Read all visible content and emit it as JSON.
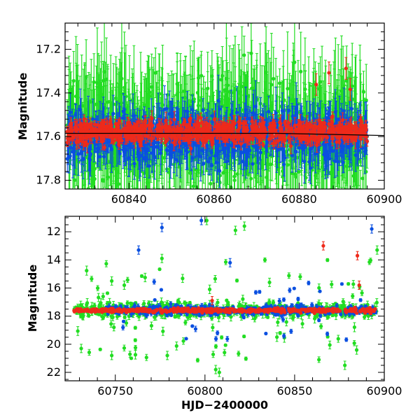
{
  "chart_data": [
    {
      "type": "scatter",
      "title": "",
      "xlabel": "",
      "ylabel": "Magnitude",
      "xlim": [
        60825,
        60900
      ],
      "ylim": [
        17.84,
        17.08
      ],
      "y_inverted": true,
      "xticks": [
        60840,
        60860,
        60880,
        60900
      ],
      "yticks": [
        17.2,
        17.4,
        17.6,
        17.8
      ],
      "xtick_labels": [
        "60840",
        "60860",
        "60880",
        "60900"
      ],
      "ytick_labels": [
        "17.2",
        "17.4",
        "17.6",
        "17.8"
      ],
      "grid": false,
      "error_bars": true,
      "series": [
        {
          "color": "#22dd22",
          "marker": "circle"
        },
        {
          "color": "#0a4fe0",
          "marker": "circle"
        },
        {
          "color": "#ee2a1b",
          "marker": "circle"
        }
      ],
      "model_curve": {
        "color": "#000000",
        "x": [
          60825,
          60850,
          60875,
          60900
        ],
        "y": [
          17.585,
          17.585,
          17.585,
          17.595
        ]
      }
    },
    {
      "type": "scatter",
      "title": "",
      "xlabel": "HJD−2400000",
      "ylabel": "Magnitude",
      "xlim": [
        60722,
        60900
      ],
      "ylim": [
        22.6,
        10.9
      ],
      "y_inverted": true,
      "xticks": [
        60750,
        60800,
        60850,
        60900
      ],
      "yticks": [
        12,
        14,
        16,
        18,
        20,
        22
      ],
      "xtick_labels": [
        "60750",
        "60800",
        "60850",
        "60900"
      ],
      "ytick_labels": [
        "12",
        "14",
        "16",
        "18",
        "20",
        "22"
      ],
      "grid": false,
      "error_bars": true,
      "series": [
        {
          "color": "#22dd22",
          "marker": "circle"
        },
        {
          "color": "#0a4fe0",
          "marker": "circle"
        },
        {
          "color": "#ee2a1b",
          "marker": "circle"
        }
      ],
      "highlight_points": [
        {
          "series": 1,
          "x": 60763,
          "y": 13.3
        },
        {
          "series": 1,
          "x": 60776,
          "y": 11.7
        },
        {
          "series": 1,
          "x": 60798,
          "y": 11.2
        },
        {
          "series": 1,
          "x": 60814,
          "y": 14.2
        },
        {
          "series": 1,
          "x": 60893,
          "y": 11.8
        },
        {
          "series": 0,
          "x": 60776,
          "y": 13.9
        },
        {
          "series": 0,
          "x": 60801,
          "y": 11.2
        },
        {
          "series": 0,
          "x": 60822,
          "y": 11.6
        },
        {
          "series": 0,
          "x": 60817,
          "y": 11.9
        },
        {
          "series": 0,
          "x": 60748,
          "y": 15.5
        },
        {
          "series": 0,
          "x": 60755,
          "y": 15.8
        },
        {
          "series": 0,
          "x": 60731,
          "y": 20.3
        },
        {
          "series": 0,
          "x": 60748,
          "y": 20.8
        },
        {
          "series": 0,
          "x": 60779,
          "y": 20.8
        },
        {
          "series": 0,
          "x": 60806,
          "y": 21.8
        },
        {
          "series": 0,
          "x": 60808,
          "y": 22.0
        },
        {
          "series": 0,
          "x": 60878,
          "y": 21.5
        },
        {
          "series": 0,
          "x": 60836,
          "y": 15.6
        },
        {
          "series": 0,
          "x": 60896,
          "y": 13.3
        },
        {
          "series": 2,
          "x": 60866,
          "y": 13.0
        },
        {
          "series": 2,
          "x": 60885,
          "y": 13.7
        },
        {
          "series": 2,
          "x": 60886,
          "y": 15.8
        },
        {
          "series": 2,
          "x": 60804,
          "y": 16.9
        }
      ]
    }
  ]
}
